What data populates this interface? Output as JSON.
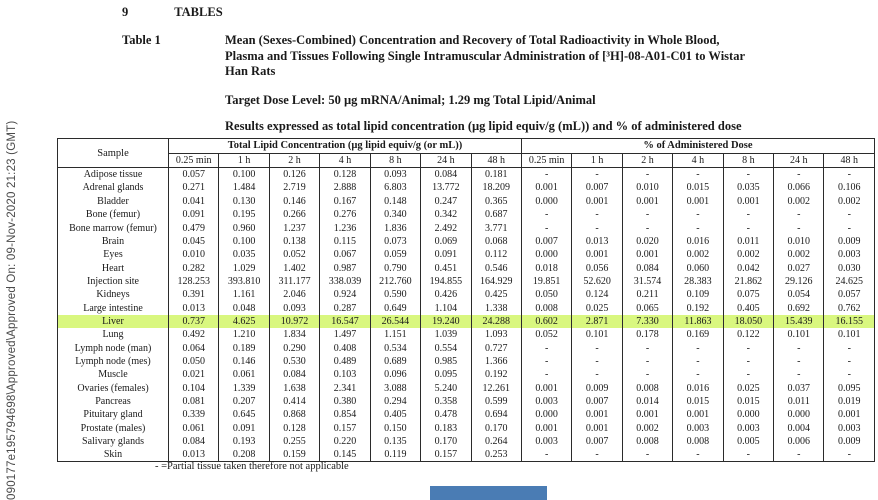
{
  "watermark": "090177e195794698\\Approved\\Approved On: 09-Nov-2020 21:23 (GMT)",
  "heading": {
    "section_number": "9",
    "section_title": "TABLES"
  },
  "caption": {
    "table_label": "Table 1",
    "title_lines": [
      "Mean (Sexes-Combined) Concentration and Recovery of Total Radioactivity in Whole Blood,",
      "Plasma and Tissues Following Single Intramuscular Administration of [³H]-08-A01-C01 to Wistar",
      "Han Rats"
    ],
    "dose_line": "Target Dose Level: 50 µg mRNA/Animal; 1.29 mg Total Lipid/Animal",
    "results_line": "Results expressed as total lipid concentration (µg lipid equiv/g (mL)) and % of administered dose"
  },
  "table": {
    "sample_header": "Sample",
    "group1_header": "Total Lipid Concentration (µg lipid equiv/g (or mL))",
    "group2_header": "% of Administered Dose",
    "time_headers": [
      "0.25 min",
      "1 h",
      "2 h",
      "4 h",
      "8 h",
      "24 h",
      "48 h"
    ],
    "rows": [
      {
        "sample": "Adipose tissue",
        "conc": [
          "0.057",
          "0.100",
          "0.126",
          "0.128",
          "0.093",
          "0.084",
          "0.181"
        ],
        "pct": [
          "-",
          "-",
          "-",
          "-",
          "-",
          "-",
          "-"
        ],
        "highlight": false
      },
      {
        "sample": "Adrenal glands",
        "conc": [
          "0.271",
          "1.484",
          "2.719",
          "2.888",
          "6.803",
          "13.772",
          "18.209"
        ],
        "pct": [
          "0.001",
          "0.007",
          "0.010",
          "0.015",
          "0.035",
          "0.066",
          "0.106"
        ],
        "highlight": false
      },
      {
        "sample": "Bladder",
        "conc": [
          "0.041",
          "0.130",
          "0.146",
          "0.167",
          "0.148",
          "0.247",
          "0.365"
        ],
        "pct": [
          "0.000",
          "0.001",
          "0.001",
          "0.001",
          "0.001",
          "0.002",
          "0.002"
        ],
        "highlight": false
      },
      {
        "sample": "Bone (femur)",
        "conc": [
          "0.091",
          "0.195",
          "0.266",
          "0.276",
          "0.340",
          "0.342",
          "0.687"
        ],
        "pct": [
          "-",
          "-",
          "-",
          "-",
          "-",
          "-",
          "-"
        ],
        "highlight": false
      },
      {
        "sample": "Bone marrow (femur)",
        "conc": [
          "0.479",
          "0.960",
          "1.237",
          "1.236",
          "1.836",
          "2.492",
          "3.771"
        ],
        "pct": [
          "-",
          "-",
          "-",
          "-",
          "-",
          "-",
          "-"
        ],
        "highlight": false
      },
      {
        "sample": "Brain",
        "conc": [
          "0.045",
          "0.100",
          "0.138",
          "0.115",
          "0.073",
          "0.069",
          "0.068"
        ],
        "pct": [
          "0.007",
          "0.013",
          "0.020",
          "0.016",
          "0.011",
          "0.010",
          "0.009"
        ],
        "highlight": false
      },
      {
        "sample": "Eyes",
        "conc": [
          "0.010",
          "0.035",
          "0.052",
          "0.067",
          "0.059",
          "0.091",
          "0.112"
        ],
        "pct": [
          "0.000",
          "0.001",
          "0.001",
          "0.002",
          "0.002",
          "0.002",
          "0.003"
        ],
        "highlight": false
      },
      {
        "sample": "Heart",
        "conc": [
          "0.282",
          "1.029",
          "1.402",
          "0.987",
          "0.790",
          "0.451",
          "0.546"
        ],
        "pct": [
          "0.018",
          "0.056",
          "0.084",
          "0.060",
          "0.042",
          "0.027",
          "0.030"
        ],
        "highlight": false
      },
      {
        "sample": "Injection site",
        "conc": [
          "128.253",
          "393.810",
          "311.177",
          "338.039",
          "212.760",
          "194.855",
          "164.929"
        ],
        "pct": [
          "19.851",
          "52.620",
          "31.574",
          "28.383",
          "21.862",
          "29.126",
          "24.625"
        ],
        "highlight": false
      },
      {
        "sample": "Kidneys",
        "conc": [
          "0.391",
          "1.161",
          "2.046",
          "0.924",
          "0.590",
          "0.426",
          "0.425"
        ],
        "pct": [
          "0.050",
          "0.124",
          "0.211",
          "0.109",
          "0.075",
          "0.054",
          "0.057"
        ],
        "highlight": false
      },
      {
        "sample": "Large intestine",
        "conc": [
          "0.013",
          "0.048",
          "0.093",
          "0.287",
          "0.649",
          "1.104",
          "1.338"
        ],
        "pct": [
          "0.008",
          "0.025",
          "0.065",
          "0.192",
          "0.405",
          "0.692",
          "0.762"
        ],
        "highlight": false
      },
      {
        "sample": "Liver",
        "conc": [
          "0.737",
          "4.625",
          "10.972",
          "16.547",
          "26.544",
          "19.240",
          "24.288"
        ],
        "pct": [
          "0.602",
          "2.871",
          "7.330",
          "11.863",
          "18.050",
          "15.439",
          "16.155"
        ],
        "highlight": true
      },
      {
        "sample": "Lung",
        "conc": [
          "0.492",
          "1.210",
          "1.834",
          "1.497",
          "1.151",
          "1.039",
          "1.093"
        ],
        "pct": [
          "0.052",
          "0.101",
          "0.178",
          "0.169",
          "0.122",
          "0.101",
          "0.101"
        ],
        "highlight": false
      },
      {
        "sample": "Lymph node (man)",
        "conc": [
          "0.064",
          "0.189",
          "0.290",
          "0.408",
          "0.534",
          "0.554",
          "0.727"
        ],
        "pct": [
          "-",
          "-",
          "-",
          "-",
          "-",
          "-",
          "-"
        ],
        "highlight": false
      },
      {
        "sample": "Lymph node (mes)",
        "conc": [
          "0.050",
          "0.146",
          "0.530",
          "0.489",
          "0.689",
          "0.985",
          "1.366"
        ],
        "pct": [
          "-",
          "-",
          "-",
          "-",
          "-",
          "-",
          "-"
        ],
        "highlight": false
      },
      {
        "sample": "Muscle",
        "conc": [
          "0.021",
          "0.061",
          "0.084",
          "0.103",
          "0.096",
          "0.095",
          "0.192"
        ],
        "pct": [
          "-",
          "-",
          "-",
          "-",
          "-",
          "-",
          "-"
        ],
        "highlight": false
      },
      {
        "sample": "Ovaries (females)",
        "conc": [
          "0.104",
          "1.339",
          "1.638",
          "2.341",
          "3.088",
          "5.240",
          "12.261"
        ],
        "pct": [
          "0.001",
          "0.009",
          "0.008",
          "0.016",
          "0.025",
          "0.037",
          "0.095"
        ],
        "highlight": false
      },
      {
        "sample": "Pancreas",
        "conc": [
          "0.081",
          "0.207",
          "0.414",
          "0.380",
          "0.294",
          "0.358",
          "0.599"
        ],
        "pct": [
          "0.003",
          "0.007",
          "0.014",
          "0.015",
          "0.015",
          "0.011",
          "0.019"
        ],
        "highlight": false
      },
      {
        "sample": "Pituitary gland",
        "conc": [
          "0.339",
          "0.645",
          "0.868",
          "0.854",
          "0.405",
          "0.478",
          "0.694"
        ],
        "pct": [
          "0.000",
          "0.001",
          "0.001",
          "0.001",
          "0.000",
          "0.000",
          "0.001"
        ],
        "highlight": false
      },
      {
        "sample": "Prostate (males)",
        "conc": [
          "0.061",
          "0.091",
          "0.128",
          "0.157",
          "0.150",
          "0.183",
          "0.170"
        ],
        "pct": [
          "0.001",
          "0.001",
          "0.002",
          "0.003",
          "0.003",
          "0.004",
          "0.003"
        ],
        "highlight": false
      },
      {
        "sample": "Salivary glands",
        "conc": [
          "0.084",
          "0.193",
          "0.255",
          "0.220",
          "0.135",
          "0.170",
          "0.264"
        ],
        "pct": [
          "0.003",
          "0.007",
          "0.008",
          "0.008",
          "0.005",
          "0.006",
          "0.009"
        ],
        "highlight": false
      },
      {
        "sample": "Skin",
        "conc": [
          "0.013",
          "0.208",
          "0.159",
          "0.145",
          "0.119",
          "0.157",
          "0.253"
        ],
        "pct": [
          "-",
          "-",
          "-",
          "-",
          "-",
          "-",
          "-"
        ],
        "highlight": false
      }
    ]
  },
  "footnote": "- =Partial tissue taken therefore not applicable",
  "colors": {
    "highlight_row": "#d9f77f",
    "blue_bar": "#4a7cb4"
  }
}
